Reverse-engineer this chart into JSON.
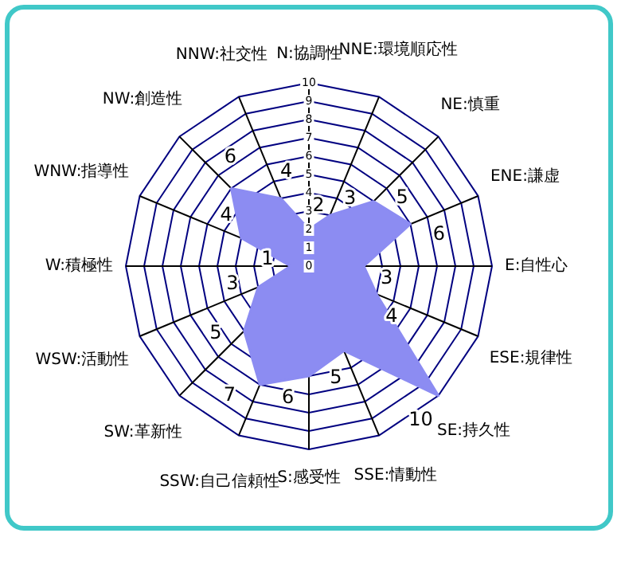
{
  "chart_data": {
    "type": "radar",
    "categories": [
      "N:協調性",
      "NNE:環境順応性",
      "NE:慎重",
      "ENE:謙虚",
      "E:自性心",
      "ESE:規律性",
      "SE:持久性",
      "SSE:情動性",
      "S:感受性",
      "SSW:自己信頼性",
      "SW:革新性",
      "WSW:活動性",
      "W:積極性",
      "WNW:指導性",
      "NW:創造性",
      "NNW:社交性"
    ],
    "series": [
      {
        "color": "#8c8cf2",
        "values": [
          2,
          3,
          5,
          6,
          3,
          4,
          10,
          5,
          6,
          7,
          5,
          3,
          1,
          4,
          6,
          4
        ]
      }
    ],
    "ylim": [
      0,
      10
    ],
    "yticks": [
      0,
      1,
      2,
      3,
      4,
      5,
      6,
      7,
      8,
      9,
      10
    ],
    "grid": true,
    "data_labels": true,
    "marker": "none"
  }
}
